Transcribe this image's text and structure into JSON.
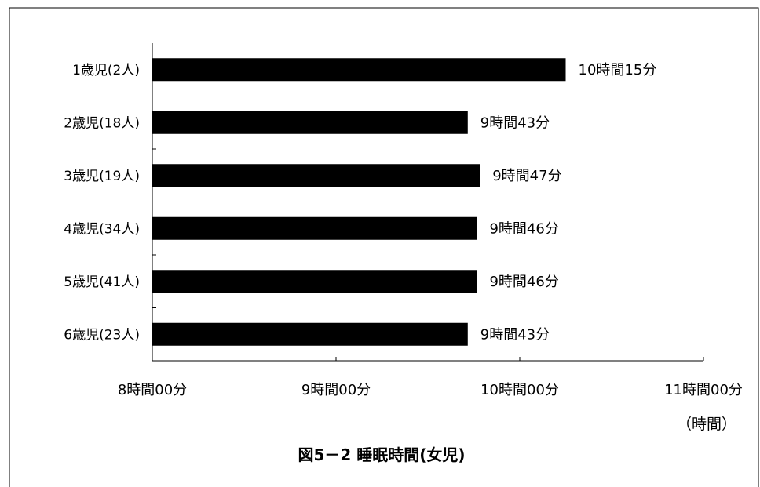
{
  "chart_data": {
    "type": "bar",
    "orientation": "horizontal",
    "title": "図5－2 睡眠時間(女児)",
    "xlabel": "",
    "ylabel": "",
    "unit_label": "（時間）",
    "categories": [
      "1歳児(2人)",
      "2歳児(18人)",
      "3歳児(19人)",
      "4歳児(34人)",
      "5歳児(41人)",
      "6歳児(23人)"
    ],
    "values": [
      10.25,
      9.717,
      9.783,
      9.767,
      9.767,
      9.717
    ],
    "value_labels": [
      "10時間15分",
      "9時間43分",
      "9時間47分",
      "9時間46分",
      "9時間46分",
      "9時間43分"
    ],
    "xlim": [
      8,
      11
    ],
    "xticks": [
      8,
      9,
      10,
      11
    ],
    "xtick_labels": [
      "8時間00分",
      "9時間00分",
      "10時間00分",
      "11時間00分"
    ],
    "bar_color": "#000000",
    "grid": false,
    "legend": "none"
  }
}
